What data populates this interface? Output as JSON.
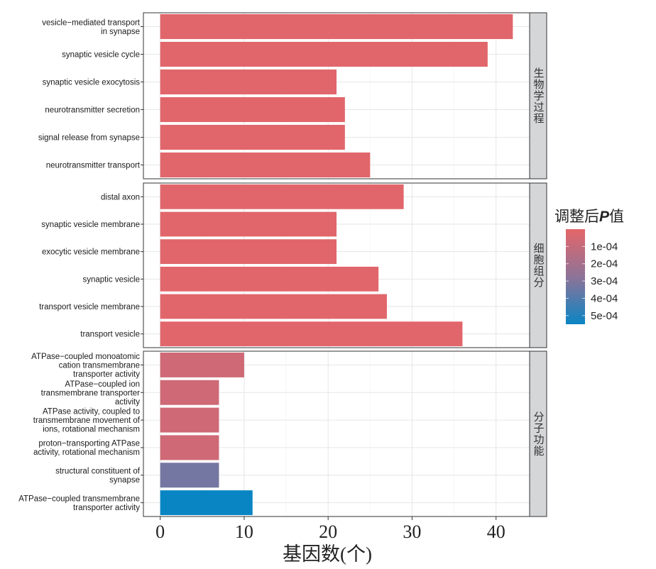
{
  "chart_data": {
    "type": "bar",
    "orientation": "horizontal",
    "xlabel": "基因数(个)",
    "xlim": [
      -2,
      44
    ],
    "xticks": [
      0,
      10,
      20,
      30,
      40
    ],
    "grid": true,
    "legend": {
      "title_prefix": "调整后",
      "title_italic": "P",
      "title_suffix": "值",
      "placement": "right",
      "range": [
        0,
        0.00055
      ],
      "low_color": "#E46669",
      "high_color": "#0A85C4",
      "ticks": [
        {
          "value": 0.0001,
          "label": "1e-04"
        },
        {
          "value": 0.0002,
          "label": "2e-04"
        },
        {
          "value": 0.0003,
          "label": "3e-04"
        },
        {
          "value": 0.0004,
          "label": "4e-04"
        },
        {
          "value": 0.0005,
          "label": "5e-04"
        }
      ]
    },
    "facets": [
      {
        "strip": "生物学过程",
        "bars": [
          {
            "label": [
              "vesicle−mediated transport",
              "in synapse"
            ],
            "value": 42,
            "padj": 1e-05
          },
          {
            "label": [
              "synaptic vesicle cycle"
            ],
            "value": 39,
            "padj": 1e-05
          },
          {
            "label": [
              "synaptic vesicle exocytosis"
            ],
            "value": 21,
            "padj": 1e-05
          },
          {
            "label": [
              "neurotransmitter secretion"
            ],
            "value": 22,
            "padj": 1e-05
          },
          {
            "label": [
              "signal release from synapse"
            ],
            "value": 22,
            "padj": 1e-05
          },
          {
            "label": [
              "neurotransmitter transport"
            ],
            "value": 25,
            "padj": 1e-05
          }
        ]
      },
      {
        "strip": "细胞组分",
        "bars": [
          {
            "label": [
              "distal axon"
            ],
            "value": 29,
            "padj": 1e-05
          },
          {
            "label": [
              "synaptic vesicle membrane"
            ],
            "value": 21,
            "padj": 1e-05
          },
          {
            "label": [
              "exocytic vesicle membrane"
            ],
            "value": 21,
            "padj": 1e-05
          },
          {
            "label": [
              "synaptic vesicle"
            ],
            "value": 26,
            "padj": 1e-05
          },
          {
            "label": [
              "transport vesicle membrane"
            ],
            "value": 27,
            "padj": 1e-05
          },
          {
            "label": [
              "transport vesicle"
            ],
            "value": 36,
            "padj": 1e-05
          }
        ]
      },
      {
        "strip": "分子功能",
        "bars": [
          {
            "label": [
              "ATPase−coupled monoatomic",
              "cation transmembrane",
              "transporter activity"
            ],
            "value": 10,
            "padj": 7e-05
          },
          {
            "label": [
              "ATPase−coupled ion",
              "transmembrane transporter",
              "activity"
            ],
            "value": 7,
            "padj": 7e-05
          },
          {
            "label": [
              "ATPase activity, coupled to",
              "transmembrane movement of",
              "ions, rotational mechanism"
            ],
            "value": 7,
            "padj": 7e-05
          },
          {
            "label": [
              "proton−transporting ATPase",
              "activity, rotational mechanism"
            ],
            "value": 7,
            "padj": 7e-05
          },
          {
            "label": [
              "structural constituent of",
              "synapse"
            ],
            "value": 7,
            "padj": 0.00033
          },
          {
            "label": [
              "ATPase−coupled transmembrane",
              "transporter activity"
            ],
            "value": 11,
            "padj": 0.00055
          }
        ]
      }
    ]
  }
}
